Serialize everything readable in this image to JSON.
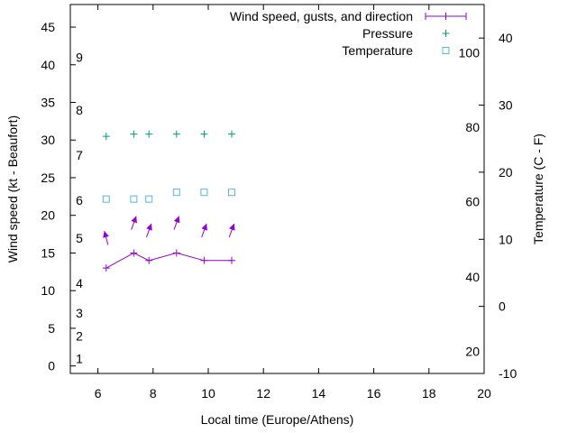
{
  "chart_data": {
    "type": "line",
    "title": "",
    "xlabel": "Local time (Europe/Athens)",
    "ylabel": "Wind speed (kt - Beaufort)",
    "y2label": "Temperature (C - F)",
    "xlim": [
      5,
      20
    ],
    "ylim": [
      -1,
      48
    ],
    "y2lim": [
      -10,
      45
    ],
    "x_ticks": [
      6,
      8,
      10,
      12,
      14,
      16,
      18,
      20
    ],
    "y_ticks": [
      0,
      5,
      10,
      15,
      20,
      25,
      30,
      35,
      40,
      45
    ],
    "y2_ticks": [
      -10,
      0,
      10,
      20,
      30,
      40
    ],
    "beaufort_labels": [
      {
        "label": "1",
        "knots": 1
      },
      {
        "label": "2",
        "knots": 4
      },
      {
        "label": "3",
        "knots": 7
      },
      {
        "label": "4",
        "knots": 11
      },
      {
        "label": "5",
        "knots": 17
      },
      {
        "label": "6",
        "knots": 22
      },
      {
        "label": "7",
        "knots": 28
      },
      {
        "label": "8",
        "knots": 34
      },
      {
        "label": "9",
        "knots": 41
      }
    ],
    "fahrenheit_labels": [
      {
        "label": "20",
        "celsius": -6.7
      },
      {
        "label": "40",
        "celsius": 4.4
      },
      {
        "label": "60",
        "celsius": 15.6
      },
      {
        "label": "80",
        "celsius": 26.7
      },
      {
        "label": "100",
        "celsius": 37.8
      }
    ],
    "legend_position": "top-right",
    "series": [
      {
        "name": "Wind speed, gusts, and direction",
        "color": "#9400d3",
        "x": [
          6.3,
          7.3,
          7.85,
          8.85,
          9.85,
          10.85
        ],
        "speed": [
          13,
          15,
          14,
          15,
          14,
          14
        ],
        "gusts": [
          17,
          19,
          18,
          19,
          18,
          18
        ],
        "direction_deg": [
          345,
          20,
          20,
          20,
          20,
          20
        ]
      },
      {
        "name": "Pressure",
        "color": "#009e73",
        "x": [
          6.3,
          7.3,
          7.85,
          8.85,
          9.85,
          10.85
        ],
        "values": [
          30.5,
          30.8,
          30.8,
          30.8,
          30.8,
          30.8
        ]
      },
      {
        "name": "Temperature",
        "color": "#56b4e9",
        "x": [
          6.3,
          7.3,
          7.85,
          8.85,
          9.85,
          10.85
        ],
        "values": [
          16,
          16,
          16,
          17,
          17,
          17
        ]
      }
    ]
  }
}
